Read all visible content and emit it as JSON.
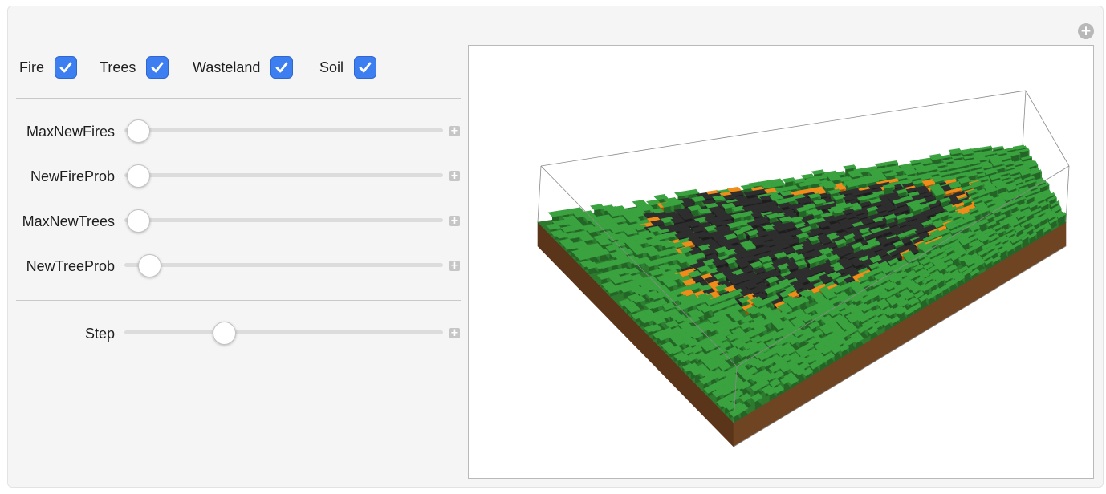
{
  "checkboxes": [
    {
      "label": "Fire",
      "checked": true
    },
    {
      "label": "Trees",
      "checked": true
    },
    {
      "label": "Wasteland",
      "checked": true
    },
    {
      "label": "Soil",
      "checked": true
    }
  ],
  "sliders": [
    {
      "label": "MaxNewFires",
      "value": 0.0
    },
    {
      "label": "NewFireProb",
      "value": 0.0
    },
    {
      "label": "MaxNewTrees",
      "value": 0.0
    },
    {
      "label": "NewTreeProb",
      "value": 0.04
    }
  ],
  "step_slider": {
    "label": "Step",
    "value": 0.34
  },
  "icons": {
    "corner": "circle-plus-icon",
    "slider_expand": "plus-icon",
    "checkbox": "checkmark-icon"
  },
  "colors": {
    "accent": "#3d7ef0",
    "tree": "#3aa33f",
    "fire": "#f08d1a",
    "wasteland": "#2e2e2e",
    "soil": "#6e4423"
  }
}
